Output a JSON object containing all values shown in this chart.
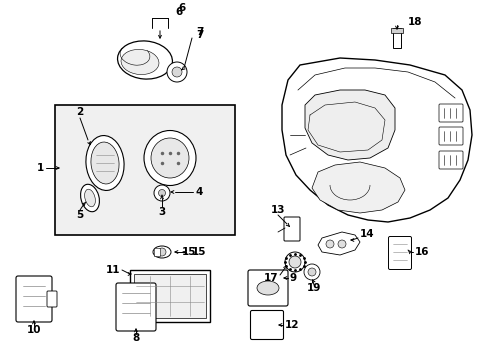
{
  "background_color": "#ffffff",
  "line_color": "#000000",
  "figsize": [
    4.89,
    3.6
  ],
  "dpi": 100,
  "label_fontsize": 7.5
}
